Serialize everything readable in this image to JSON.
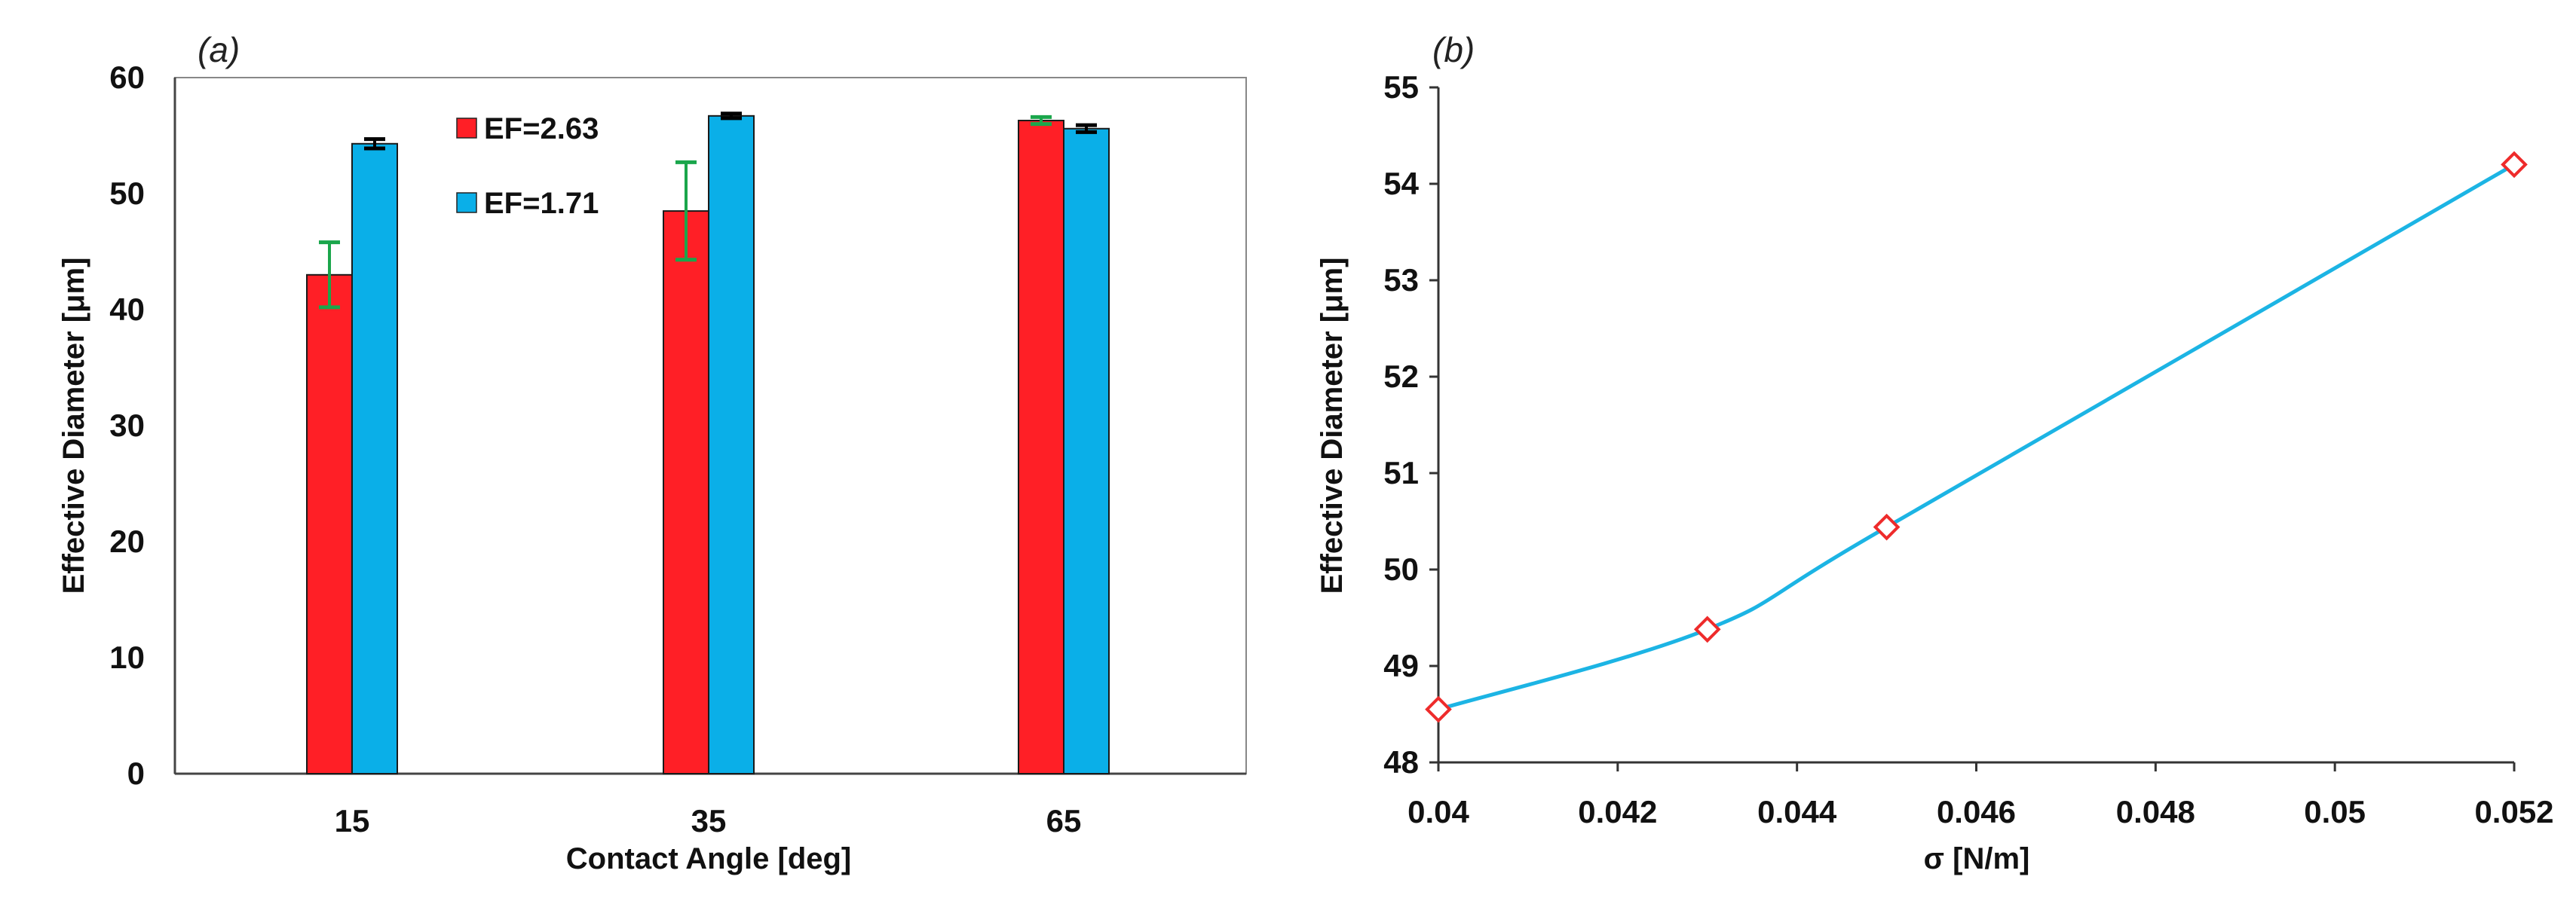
{
  "chart_data": [
    {
      "panel": "(a)",
      "type": "bar",
      "categories": [
        "15",
        "35",
        "65"
      ],
      "series": [
        {
          "name": "EF=2.63",
          "color": "#ff1f26",
          "values": [
            43,
            48.5,
            56.3
          ],
          "error": [
            2.8,
            4.2,
            0.3
          ],
          "error_color": "#1aa64b"
        },
        {
          "name": "EF=1.71",
          "color": "#0aafe8",
          "values": [
            54.3,
            56.7,
            55.6
          ],
          "error": [
            0.4,
            0.2,
            0.3
          ],
          "error_color": "#000000"
        }
      ],
      "xlabel": "Contact Angle [deg]",
      "ylabel": "Effective Diameter [μm]",
      "ylim": [
        0,
        60
      ],
      "yticks": [
        "0",
        "10",
        "20",
        "30",
        "40",
        "50",
        "60"
      ],
      "legend_placement": "top-left",
      "grid": false
    },
    {
      "panel": "(b)",
      "type": "line",
      "x": [
        0.04,
        0.043,
        0.045,
        0.052
      ],
      "y": [
        48.55,
        49.38,
        50.44,
        54.2
      ],
      "line_color": "#1cb4e4",
      "marker_color": "#ee2b2b",
      "marker": "diamond",
      "xlabel": "σ [N/m]",
      "ylabel": "Effective Diameter [μm]",
      "xlim": [
        0.04,
        0.052
      ],
      "ylim": [
        48,
        55
      ],
      "xticks": [
        "0.04",
        "0.042",
        "0.044",
        "0.046",
        "0.048",
        "0.05",
        "0.052"
      ],
      "yticks": [
        "48",
        "49",
        "50",
        "51",
        "52",
        "53",
        "54",
        "55"
      ],
      "grid": false
    }
  ]
}
